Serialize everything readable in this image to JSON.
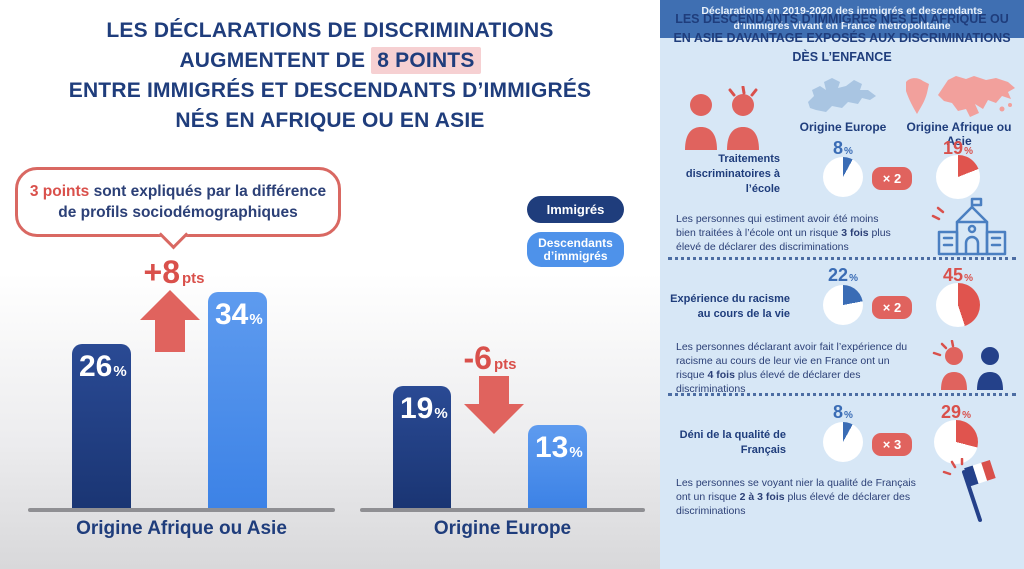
{
  "colors": {
    "navy": "#1f3d7c",
    "bar_dark_blue": "#24418a",
    "bar_light_blue": "#4588ec",
    "accent_red": "#e0635e",
    "text_red": "#d9504b",
    "pie_blue": "#3a6cb5",
    "pie_red": "#e0544e",
    "highlight_pink": "#f6d0d2",
    "panel_bg": "#d7e7f6",
    "footer_bg": "#3f6fb2"
  },
  "left": {
    "title": {
      "line1": "LES DÉCLARATIONS DE DISCRIMINATIONS",
      "line2_pre": "AUGMENTENT DE ",
      "line2_highlight": "8 POINTS",
      "line3": "ENTRE IMMIGRÉS ET DESCENDANTS D’IMMIGRÉS",
      "line4": "NÉS EN AFRIQUE OU EN ASIE"
    },
    "callout": {
      "highlight": "3 points",
      "text": " sont expliqués par la différence de profils sociodémographiques"
    }
  },
  "chart_data": [
    {
      "type": "bar",
      "title": "LES DÉCLARATIONS DE DISCRIMINATIONS AUGMENTENT DE 8 POINTS ENTRE IMMIGRÉS ET DESCENDANTS D’IMMIGRÉS NÉS EN AFRIQUE OU EN ASIE",
      "categories": [
        "Origine Afrique ou Asie",
        "Origine Europe"
      ],
      "series": [
        {
          "name": "Immigrés",
          "values": [
            26,
            19
          ]
        },
        {
          "name": "Descendants d’immigrés",
          "values": [
            34,
            13
          ]
        }
      ],
      "value_unit": "%",
      "annotations": [
        {
          "text": "+8",
          "unit": "pts",
          "direction": "up",
          "category": "Origine Afrique ou Asie"
        },
        {
          "text": "-6",
          "unit": "pts",
          "direction": "down",
          "category": "Origine Europe"
        }
      ],
      "callout": "3 points sont expliqués par la différence de profils sociodémographiques",
      "ylim": [
        0,
        40
      ],
      "grid": false,
      "legend_position": "right"
    },
    {
      "type": "pie",
      "title": "LES DESCENDANTS D’IMMIGRÉS NÉS EN AFRIQUE OU EN ASIE DAVANTAGE EXPOSÉS AUX DISCRIMINATIONS DÈS L’ENFANCE",
      "columns": [
        "Origine Europe",
        "Origine Afrique ou Asie"
      ],
      "value_unit": "%",
      "rows": [
        {
          "label": "Traitements discriminatoires à l’école",
          "values": [
            8,
            19
          ],
          "multiplier": "× 2",
          "note_pre": "Les personnes qui estiment avoir été moins bien traitées à l’école ont un risque ",
          "note_bold": "3 fois",
          "note_post": " plus élevé de déclarer des discriminations",
          "icon": "school-icon"
        },
        {
          "label": "Expérience du racisme au cours de la vie",
          "values": [
            22,
            45
          ],
          "multiplier": "× 2",
          "note_pre": "Les personnes déclarant avoir fait l’expérience du racisme au cours de leur vie en France ont un risque ",
          "note_bold": "4 fois",
          "note_post": " plus élevé de déclarer des discriminations",
          "icon": "two-people-icon"
        },
        {
          "label": "Déni de la qualité de Français",
          "values": [
            8,
            29
          ],
          "multiplier": "× 3",
          "note_pre": "Les personnes se voyant nier la qualité de Français ont un risque ",
          "note_bold": "2 à 3 fois",
          "note_post": " plus élevé de déclarer des discriminations",
          "icon": "french-flag-icon"
        }
      ]
    }
  ],
  "right": {
    "footer": "Déclarations en 2019-2020 des immigrés et descendants d’immigrés vivant en France métropolitaine"
  }
}
